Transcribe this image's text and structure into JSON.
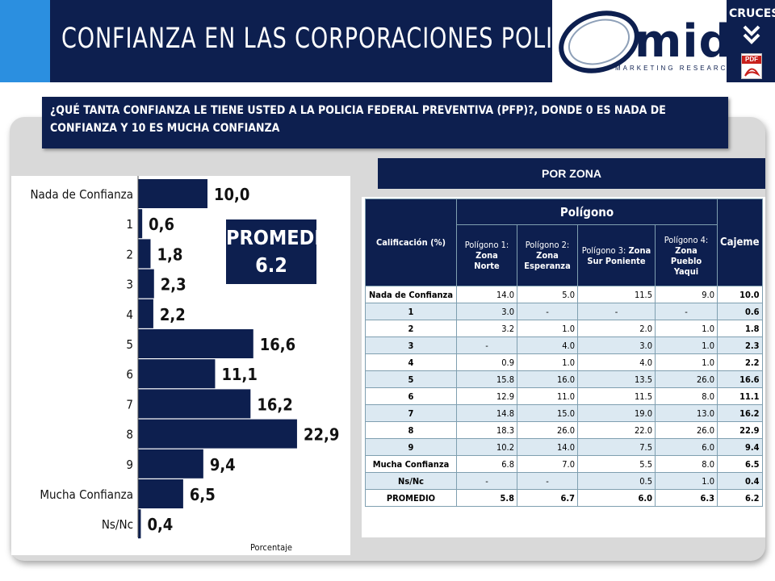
{
  "header": {
    "title": "CONFIANZA EN LAS CORPORACIONES POLICIACAS",
    "logo_text": "mida",
    "logo_subtitle": "MARKETING RESEARCH",
    "cruces_label": "CRUCES",
    "pdf_label": "PDF"
  },
  "question": "¿QUÉ TANTA CONFIANZA LE TIENE USTED A LA POLICIA FEDERAL PREVENTIVA (PFP)?, DONDE 0 ES NADA DE CONFIANZA Y 10 ES MUCHA CONFIANZA",
  "promedio": {
    "label": "PROMEDIO",
    "value": "6.2"
  },
  "zona_label": "POR ZONA",
  "chart_data": {
    "type": "bar",
    "orientation": "horizontal",
    "categories": [
      "Nada de Confianza",
      "1",
      "2",
      "3",
      "4",
      "5",
      "6",
      "7",
      "8",
      "9",
      "Mucha Confianza",
      "Ns/Nc"
    ],
    "values": [
      10.0,
      0.6,
      1.8,
      2.3,
      2.2,
      16.6,
      11.1,
      16.2,
      22.9,
      9.4,
      6.5,
      0.4
    ],
    "value_labels": [
      "10,0",
      "0,6",
      "1,8",
      "2,3",
      "2,2",
      "16,6",
      "11,1",
      "16,2",
      "22,9",
      "9,4",
      "6,5",
      "0,4"
    ],
    "xlabel": "Porcentaje",
    "xlim": [
      0,
      30
    ],
    "bar_color": "#0d1f4f",
    "grid": false
  },
  "table": {
    "corner_header": "Calificación (%)",
    "group_header": "Polígono",
    "last_header": "Cajeme",
    "columns": [
      {
        "prefix": "Polígono 1:",
        "bold": "Zona",
        "bold2": "Norte"
      },
      {
        "prefix": "Polígono 2:",
        "bold": "Zona",
        "bold2": "Esperanza"
      },
      {
        "prefix": "Polígono 3:",
        "bold": "Zona",
        "bold2": "Sur Poniente"
      },
      {
        "prefix": "Polígono 4:",
        "bold": "Zona",
        "bold2": "Pueblo Yaqui"
      }
    ],
    "rows": [
      {
        "label": "Nada de Confianza",
        "values": [
          "14.0",
          "5.0",
          "11.5",
          "9.0"
        ],
        "cajeme": "10.0"
      },
      {
        "label": "1",
        "values": [
          "3.0",
          "-",
          "-",
          "-"
        ],
        "cajeme": "0.6"
      },
      {
        "label": "2",
        "values": [
          "3.2",
          "1.0",
          "2.0",
          "1.0"
        ],
        "cajeme": "1.8"
      },
      {
        "label": "3",
        "values": [
          "-",
          "4.0",
          "3.0",
          "1.0"
        ],
        "cajeme": "2.3"
      },
      {
        "label": "4",
        "values": [
          "0.9",
          "1.0",
          "4.0",
          "1.0"
        ],
        "cajeme": "2.2"
      },
      {
        "label": "5",
        "values": [
          "15.8",
          "16.0",
          "13.5",
          "26.0"
        ],
        "cajeme": "16.6"
      },
      {
        "label": "6",
        "values": [
          "12.9",
          "11.0",
          "11.5",
          "8.0"
        ],
        "cajeme": "11.1"
      },
      {
        "label": "7",
        "values": [
          "14.8",
          "15.0",
          "19.0",
          "13.0"
        ],
        "cajeme": "16.2"
      },
      {
        "label": "8",
        "values": [
          "18.3",
          "26.0",
          "22.0",
          "26.0"
        ],
        "cajeme": "22.9"
      },
      {
        "label": "9",
        "values": [
          "10.2",
          "14.0",
          "7.5",
          "6.0"
        ],
        "cajeme": "9.4"
      },
      {
        "label": "Mucha Confianza",
        "values": [
          "6.8",
          "7.0",
          "5.5",
          "8.0"
        ],
        "cajeme": "6.5"
      },
      {
        "label": "Ns/Nc",
        "values": [
          "-",
          "-",
          "0.5",
          "1.0"
        ],
        "cajeme": "0.4"
      }
    ],
    "total_row": {
      "label": "PROMEDIO",
      "values": [
        "5.8",
        "6.7",
        "6.0",
        "6.3"
      ],
      "cajeme": "6.2"
    }
  }
}
